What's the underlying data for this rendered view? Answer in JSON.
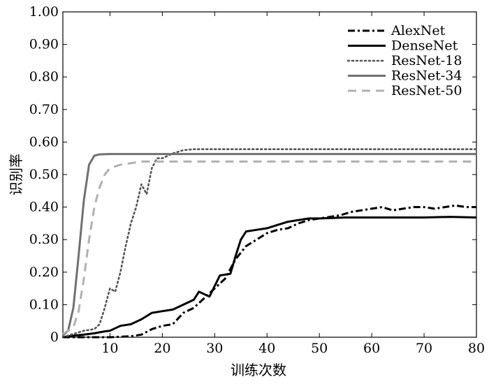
{
  "chart_data": {
    "type": "line",
    "title": "",
    "xlabel": "训练次数",
    "ylabel": "识别率",
    "xlim": [
      1,
      80
    ],
    "ylim": [
      0,
      1.0
    ],
    "x_ticks": [
      "10",
      "20",
      "30",
      "40",
      "50",
      "60",
      "70",
      "80"
    ],
    "y_ticks": [
      "0",
      "0.10",
      "0.20",
      "0.30",
      "0.40",
      "0.50",
      "0.60",
      "0.70",
      "0.80",
      "0.90",
      "1.00"
    ],
    "grid": false,
    "legend_position": "top-right",
    "series": [
      {
        "name": "AlexNet",
        "style": "dashdot",
        "color": "#000000",
        "points": [
          [
            1,
            0
          ],
          [
            5,
            0
          ],
          [
            10,
            0
          ],
          [
            14,
            0.003
          ],
          [
            16,
            0.008
          ],
          [
            18,
            0.025
          ],
          [
            20,
            0.035
          ],
          [
            22,
            0.04
          ],
          [
            24,
            0.075
          ],
          [
            26,
            0.09
          ],
          [
            28,
            0.12
          ],
          [
            30,
            0.15
          ],
          [
            32,
            0.18
          ],
          [
            34,
            0.24
          ],
          [
            36,
            0.28
          ],
          [
            38,
            0.3
          ],
          [
            40,
            0.32
          ],
          [
            42,
            0.33
          ],
          [
            44,
            0.335
          ],
          [
            46,
            0.35
          ],
          [
            48,
            0.36
          ],
          [
            50,
            0.365
          ],
          [
            52,
            0.37
          ],
          [
            54,
            0.375
          ],
          [
            56,
            0.385
          ],
          [
            58,
            0.39
          ],
          [
            60,
            0.395
          ],
          [
            62,
            0.4
          ],
          [
            64,
            0.39
          ],
          [
            66,
            0.395
          ],
          [
            68,
            0.4
          ],
          [
            70,
            0.4
          ],
          [
            72,
            0.395
          ],
          [
            74,
            0.4
          ],
          [
            76,
            0.405
          ],
          [
            78,
            0.4
          ],
          [
            80,
            0.4
          ]
        ]
      },
      {
        "name": "DenseNet",
        "style": "solid",
        "color": "#000000",
        "points": [
          [
            1,
            0
          ],
          [
            3,
            0.005
          ],
          [
            5,
            0.008
          ],
          [
            7,
            0.012
          ],
          [
            9,
            0.018
          ],
          [
            10,
            0.02
          ],
          [
            12,
            0.035
          ],
          [
            14,
            0.04
          ],
          [
            16,
            0.055
          ],
          [
            18,
            0.075
          ],
          [
            20,
            0.08
          ],
          [
            22,
            0.085
          ],
          [
            24,
            0.1
          ],
          [
            26,
            0.115
          ],
          [
            27,
            0.14
          ],
          [
            29,
            0.125
          ],
          [
            31,
            0.19
          ],
          [
            33,
            0.195
          ],
          [
            34,
            0.25
          ],
          [
            35,
            0.3
          ],
          [
            36,
            0.325
          ],
          [
            38,
            0.33
          ],
          [
            40,
            0.335
          ],
          [
            42,
            0.345
          ],
          [
            44,
            0.355
          ],
          [
            46,
            0.36
          ],
          [
            48,
            0.365
          ],
          [
            50,
            0.365
          ],
          [
            55,
            0.368
          ],
          [
            60,
            0.368
          ],
          [
            65,
            0.368
          ],
          [
            70,
            0.368
          ],
          [
            75,
            0.37
          ],
          [
            80,
            0.368
          ]
        ]
      },
      {
        "name": "ResNet-18",
        "style": "dotted",
        "color": "#555555",
        "points": [
          [
            1,
            0
          ],
          [
            3,
            0.01
          ],
          [
            5,
            0.02
          ],
          [
            7,
            0.025
          ],
          [
            8,
            0.04
          ],
          [
            9,
            0.09
          ],
          [
            10,
            0.15
          ],
          [
            11,
            0.14
          ],
          [
            12,
            0.2
          ],
          [
            13,
            0.28
          ],
          [
            14,
            0.35
          ],
          [
            15,
            0.4
          ],
          [
            16,
            0.47
          ],
          [
            17,
            0.44
          ],
          [
            18,
            0.52
          ],
          [
            19,
            0.55
          ],
          [
            20,
            0.55
          ],
          [
            22,
            0.565
          ],
          [
            24,
            0.575
          ],
          [
            26,
            0.578
          ],
          [
            30,
            0.578
          ],
          [
            40,
            0.578
          ],
          [
            50,
            0.578
          ],
          [
            60,
            0.578
          ],
          [
            70,
            0.578
          ],
          [
            80,
            0.578
          ]
        ]
      },
      {
        "name": "ResNet-34",
        "style": "solid",
        "color": "#707070",
        "points": [
          [
            1,
            0.005
          ],
          [
            2,
            0.02
          ],
          [
            3,
            0.09
          ],
          [
            4,
            0.25
          ],
          [
            5,
            0.42
          ],
          [
            6,
            0.53
          ],
          [
            7,
            0.558
          ],
          [
            8,
            0.562
          ],
          [
            10,
            0.563
          ],
          [
            15,
            0.563
          ],
          [
            20,
            0.563
          ],
          [
            30,
            0.563
          ],
          [
            40,
            0.563
          ],
          [
            50,
            0.563
          ],
          [
            60,
            0.563
          ],
          [
            70,
            0.563
          ],
          [
            80,
            0.563
          ]
        ]
      },
      {
        "name": "ResNet-50",
        "style": "dashed",
        "color": "#b0b0b0",
        "points": [
          [
            1,
            0.01
          ],
          [
            3,
            0.03
          ],
          [
            4,
            0.08
          ],
          [
            5,
            0.18
          ],
          [
            6,
            0.3
          ],
          [
            7,
            0.4
          ],
          [
            8,
            0.46
          ],
          [
            9,
            0.5
          ],
          [
            10,
            0.52
          ],
          [
            12,
            0.53
          ],
          [
            14,
            0.535
          ],
          [
            16,
            0.54
          ],
          [
            20,
            0.54
          ],
          [
            30,
            0.54
          ],
          [
            40,
            0.54
          ],
          [
            50,
            0.54
          ],
          [
            60,
            0.54
          ],
          [
            70,
            0.54
          ],
          [
            80,
            0.54
          ]
        ]
      }
    ]
  }
}
